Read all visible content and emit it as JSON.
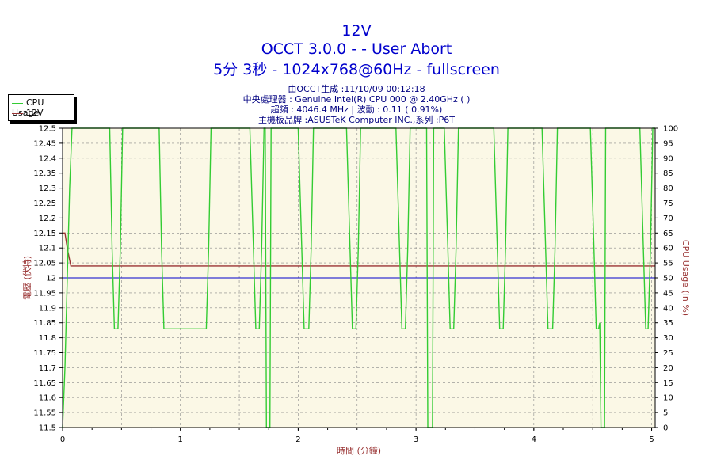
{
  "chart_data": {
    "type": "line",
    "title": "12V",
    "subtitle_lines": [
      "OCCT 3.0.0 -  - User Abort",
      "5分 3秒 - 1024x768@60Hz - fullscreen"
    ],
    "info_lines": [
      "由OCCT生成 :11/10/09 00:12:18",
      "中央處理器 : Genuine Intel(R) CPU 000 @ 2.40GHz (  )",
      "超頻 : 4046.4 MHz | 波動 : 0.11 ( 0.91%)",
      "主機板品牌 :ASUSTeK Computer INC.,系列 :P6T"
    ],
    "xlabel": "時間 (分鐘)",
    "ylabel": "電壓 (伏特)",
    "ylabel_right": "CPU Usage (in %)",
    "xlim": [
      0,
      5.03
    ],
    "ylim": [
      11.5,
      12.5
    ],
    "ylim_right": [
      0,
      100
    ],
    "x_ticks": [
      "0",
      "1",
      "2",
      "3",
      "4",
      "5"
    ],
    "y_ticks": [
      "11.5",
      "11.55",
      "11.6",
      "11.65",
      "11.7",
      "11.75",
      "11.8",
      "11.85",
      "11.9",
      "11.95",
      "12",
      "12.05",
      "12.1",
      "12.15",
      "12.2",
      "12.25",
      "12.3",
      "12.35",
      "12.4",
      "12.45",
      "12.5"
    ],
    "y_right_ticks": [
      "0",
      "5",
      "10",
      "15",
      "20",
      "25",
      "30",
      "35",
      "40",
      "45",
      "50",
      "55",
      "60",
      "65",
      "70",
      "75",
      "80",
      "85",
      "90",
      "95",
      "100"
    ],
    "reference_line": 12.0,
    "legend": [
      "CPU Usage",
      "12V"
    ],
    "colors": {
      "cpu": "#33cc33",
      "volt": "#993333",
      "reference": "#0000cc",
      "plot_bg": "#fbf8e6",
      "grid": "#888888"
    },
    "series": [
      {
        "name": "12V",
        "axis": "left",
        "x": [
          0,
          0.02,
          0.04,
          0.06,
          0.07,
          5.03
        ],
        "y": [
          12.15,
          12.15,
          12.1,
          12.06,
          12.04,
          12.04
        ]
      },
      {
        "name": "CPU Usage",
        "axis": "right",
        "x": [
          0,
          0.02,
          0.06,
          0.08,
          0.09,
          0.4,
          0.42,
          0.44,
          0.47,
          0.49,
          0.51,
          0.82,
          0.84,
          0.86,
          1.22,
          1.24,
          1.26,
          1.59,
          1.62,
          1.64,
          1.67,
          1.69,
          1.71,
          1.72,
          1.73,
          1.745,
          1.76,
          1.77,
          1.78,
          2.0,
          2.03,
          2.05,
          2.09,
          2.11,
          2.13,
          2.41,
          2.44,
          2.46,
          2.49,
          2.51,
          2.53,
          2.83,
          2.86,
          2.88,
          2.91,
          2.93,
          2.95,
          3.09,
          3.1,
          3.11,
          3.125,
          3.14,
          3.15,
          3.16,
          3.24,
          3.27,
          3.29,
          3.32,
          3.34,
          3.36,
          3.66,
          3.69,
          3.71,
          3.74,
          3.76,
          3.78,
          4.07,
          4.1,
          4.12,
          4.16,
          4.18,
          4.2,
          4.48,
          4.51,
          4.53,
          4.55,
          4.56,
          4.57,
          4.58,
          4.59,
          4.6,
          4.61,
          4.62,
          4.9,
          4.93,
          4.95,
          4.97,
          4.99,
          5.01,
          5.03
        ],
        "y": [
          0,
          20,
          80,
          100,
          100,
          100,
          60,
          33,
          33,
          60,
          100,
          100,
          60,
          33,
          33,
          60,
          100,
          100,
          60,
          33,
          33,
          60,
          100,
          100,
          0,
          0,
          0,
          100,
          100,
          100,
          60,
          33,
          33,
          60,
          100,
          100,
          60,
          33,
          33,
          60,
          100,
          100,
          60,
          33,
          33,
          60,
          100,
          100,
          0,
          0,
          0,
          0,
          100,
          100,
          100,
          60,
          33,
          33,
          60,
          100,
          100,
          60,
          33,
          33,
          60,
          100,
          100,
          60,
          33,
          33,
          60,
          100,
          100,
          60,
          33,
          33,
          35,
          0,
          0,
          0,
          0,
          100,
          100,
          100,
          60,
          33,
          33,
          60,
          100,
          100
        ]
      }
    ]
  }
}
